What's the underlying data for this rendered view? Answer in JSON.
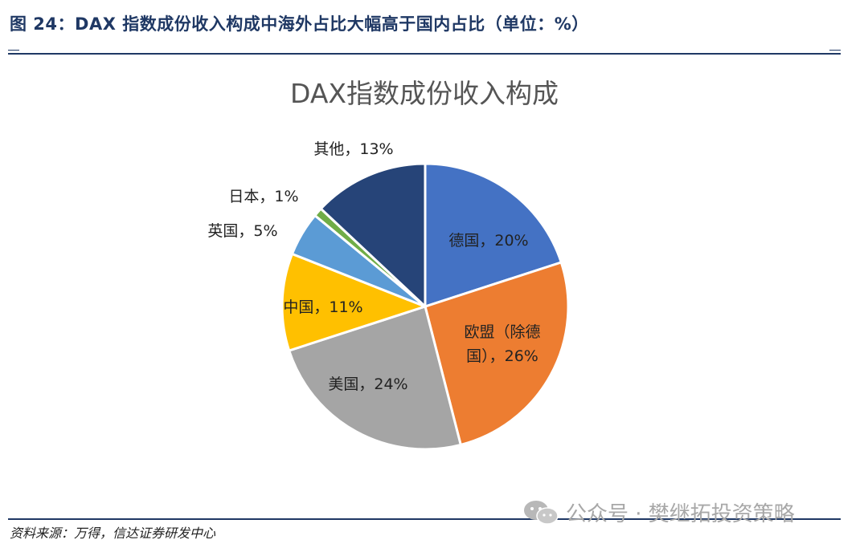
{
  "figure": {
    "title": "图 24：DAX 指数成份收入构成中海外占比大幅高于国内占比（单位：%）",
    "source": "资料来源：万得，信达证券研发中心",
    "watermark_text": "公众号 · 樊继拓投资策略",
    "watermark_icon": "wechat-icon"
  },
  "chart_data": {
    "type": "pie",
    "title": "DAX指数成份收入构成",
    "unit": "%",
    "slices": [
      {
        "name": "德国",
        "value": 20,
        "label_lines": [
          "德国，20%"
        ],
        "color": "#4472c4"
      },
      {
        "name": "欧盟（除德国）",
        "value": 26,
        "label_lines": [
          "欧盟（除德",
          "国），26%"
        ],
        "color": "#ed7d31"
      },
      {
        "name": "美国",
        "value": 24,
        "label_lines": [
          "美国，24%"
        ],
        "color": "#a5a5a5"
      },
      {
        "name": "中国",
        "value": 11,
        "label_lines": [
          "中国，11%"
        ],
        "color": "#ffc000"
      },
      {
        "name": "英国",
        "value": 5,
        "label_lines": [
          "英国，5%"
        ],
        "color": "#5b9bd5"
      },
      {
        "name": "日本",
        "value": 1,
        "label_lines": [
          "日本，1%"
        ],
        "color": "#70ad47"
      },
      {
        "name": "其他",
        "value": 13,
        "label_lines": [
          "其他，13%"
        ],
        "color": "#264478"
      }
    ]
  }
}
